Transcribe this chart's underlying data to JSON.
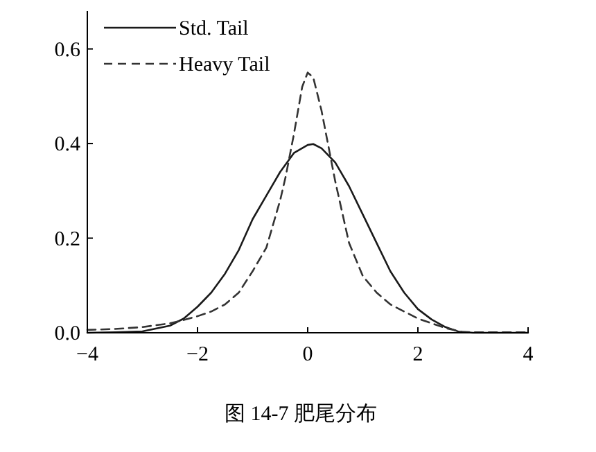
{
  "chart_data": {
    "type": "line",
    "annotations": [
      "图 14-7  肥尾分布"
    ],
    "xlim": [
      -4,
      4
    ],
    "xticks": [
      -4,
      -2,
      0,
      2,
      4
    ],
    "ylim": [
      0,
      0.68
    ],
    "yticks": [
      {
        "value": 0,
        "label": "0.0"
      },
      {
        "value": 0.2,
        "label": "0.2"
      },
      {
        "value": 0.4,
        "label": "0.4"
      },
      {
        "value": 0.6,
        "label": "0.6"
      }
    ],
    "grid": false,
    "legend": "top left",
    "series": [
      {
        "name": "Std. Tail",
        "color": "#1a1a1a",
        "line_style": "solid",
        "x": [
          -4,
          -3.5,
          -3,
          -2.5,
          -2.25,
          -2,
          -1.75,
          -1.5,
          -1.25,
          -1,
          -0.75,
          -0.5,
          -0.25,
          0,
          0.1,
          0.25,
          0.5,
          0.75,
          1,
          1.25,
          1.5,
          1.75,
          2,
          2.25,
          2.5,
          2.75,
          3,
          4
        ],
        "values": [
          0,
          0.001,
          0.003,
          0.015,
          0.03,
          0.055,
          0.085,
          0.125,
          0.175,
          0.24,
          0.29,
          0.34,
          0.38,
          0.397,
          0.399,
          0.39,
          0.36,
          0.31,
          0.25,
          0.19,
          0.13,
          0.085,
          0.05,
          0.028,
          0.012,
          0.002,
          0,
          0
        ]
      },
      {
        "name": "Heavy Tail",
        "color": "#333333",
        "line_style": "dashed",
        "x": [
          -4,
          -3.5,
          -3,
          -2.5,
          -2.25,
          -2,
          -1.75,
          -1.5,
          -1.25,
          -1,
          -0.75,
          -0.5,
          -0.4,
          -0.25,
          -0.1,
          0,
          0.1,
          0.25,
          0.4,
          0.5,
          0.75,
          1,
          1.25,
          1.5,
          2,
          2.5,
          2.8,
          3,
          4
        ],
        "values": [
          0.006,
          0.008,
          0.012,
          0.02,
          0.027,
          0.035,
          0.045,
          0.06,
          0.085,
          0.13,
          0.18,
          0.28,
          0.33,
          0.42,
          0.52,
          0.55,
          0.54,
          0.47,
          0.38,
          0.32,
          0.19,
          0.12,
          0.085,
          0.06,
          0.03,
          0.01,
          0.002,
          0.001,
          0.001
        ]
      }
    ]
  }
}
